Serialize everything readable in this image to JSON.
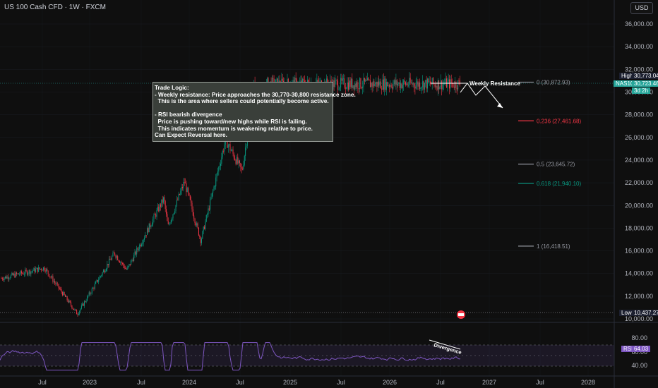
{
  "header": {
    "symbol_title": "US 100 Cash CFD · 1W · FXCM",
    "currency_button": "USD"
  },
  "note": {
    "text": "Trade Logic:\n- Weekly resistance: Price approaches the 30,770-30,800 resistance zone.\n  This is the area where sellers could potentially become active.\n\n- RSI bearish divergence\n  Price is pushing toward/new highs while RSI is failing.\n  This indicates momentum is weakening relative to price.\nCan Expect Reversal here."
  },
  "annotations": {
    "weekly_resistance": "Weekly Resistance",
    "divergence": "Divergence"
  },
  "fib_levels": [
    {
      "label": "0 (30,872.93)",
      "value": 30872.93,
      "color": "#9598a1"
    },
    {
      "label": "0.236 (27,461.68)",
      "value": 27461.68,
      "color": "#f23645"
    },
    {
      "label": "0.5 (23,645.72)",
      "value": 23645.72,
      "color": "#9598a1"
    },
    {
      "label": "0.618 (21,940.10)",
      "value": 21940.1,
      "color": "#089981"
    },
    {
      "label": "1 (16,418.51)",
      "value": 16418.51,
      "color": "#9598a1"
    }
  ],
  "price_scale": {
    "ticks": [
      "36,000.00",
      "34,000.00",
      "32,000.00",
      "30,000.00",
      "28,000.00",
      "26,000.00",
      "24,000.00",
      "22,000.00",
      "20,000.00",
      "18,000.00",
      "16,000.00",
      "14,000.00",
      "12,000.00",
      "10,000.00"
    ],
    "high": {
      "label": "High",
      "value": "30,773.04"
    },
    "last": {
      "label": "NAS100",
      "value": "30,723.46",
      "countdown": "3d 2h"
    },
    "low": {
      "label": "Low",
      "value": "10,437.27"
    }
  },
  "rsi": {
    "label": "RSI",
    "value": "64.03",
    "ticks": [
      "80.00",
      "60.00",
      "40.00"
    ]
  },
  "time_axis": [
    "Jul",
    "2023",
    "Jul",
    "2024",
    "Jul",
    "2025",
    "Jul",
    "2026",
    "Jul",
    "2027",
    "Jul",
    "2028"
  ],
  "colors": {
    "up": "#089981",
    "down": "#f23645",
    "rsi": "#7e57c2",
    "bg": "#0f0f0f"
  },
  "chart_data": {
    "type": "candlestick",
    "title": "US 100 Cash CFD · 1W · FXCM",
    "ylim": [
      9500,
      37000
    ],
    "key_points": [
      {
        "date": "2022-02",
        "close": 14500
      },
      {
        "date": "2022-10",
        "close": 10437
      },
      {
        "date": "2023-07",
        "close": 15800
      },
      {
        "date": "2023-10",
        "close": 14300
      },
      {
        "date": "2024-07",
        "close": 20600
      },
      {
        "date": "2024-08",
        "close": 18100
      },
      {
        "date": "2024-12",
        "close": 22100
      },
      {
        "date": "2025-04",
        "close": 16900
      },
      {
        "date": "2025-10",
        "close": 25800
      },
      {
        "date": "2026-02",
        "close": 23000
      },
      {
        "date": "2026-05",
        "close": 30700
      },
      {
        "date": "2026-07",
        "close": 28500
      },
      {
        "date": "2026-08",
        "close": 30723
      }
    ]
  }
}
